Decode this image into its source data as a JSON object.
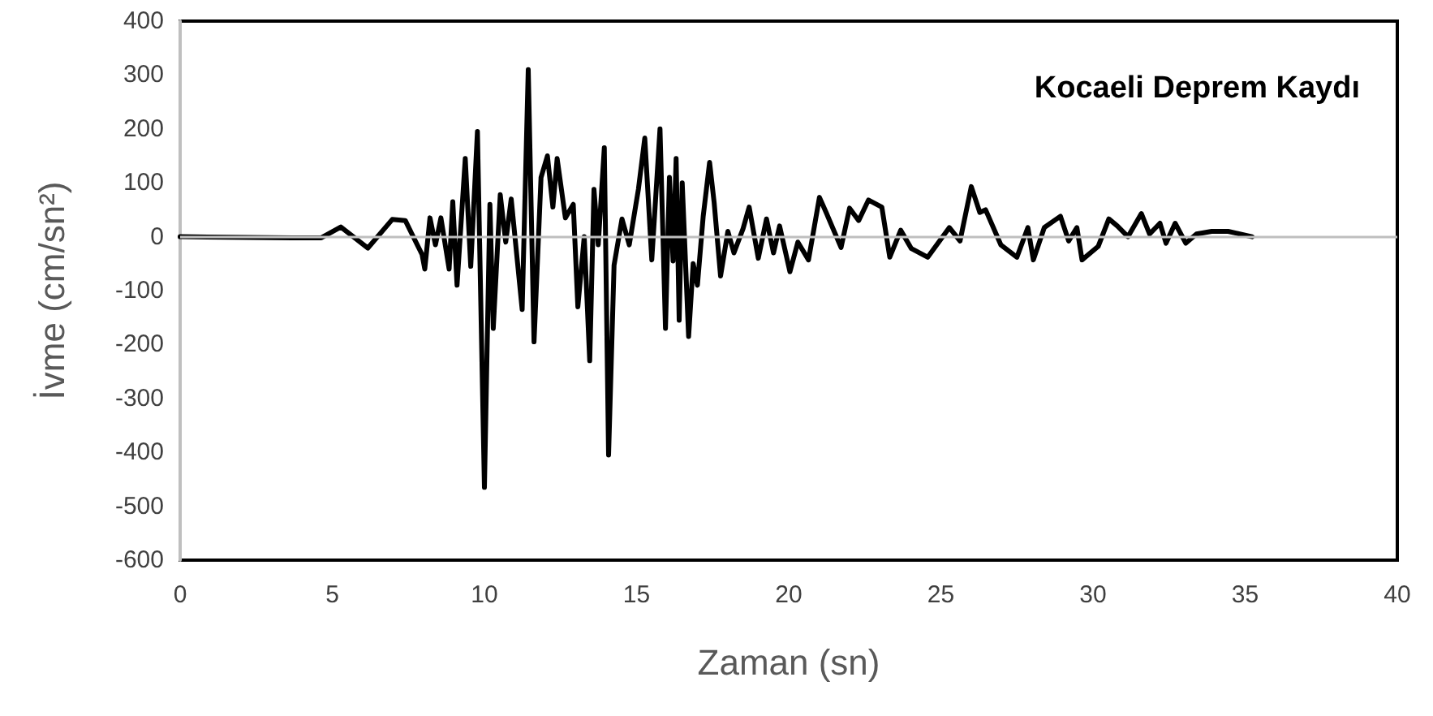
{
  "chart_data": {
    "type": "line",
    "title": "Kocaeli Deprem Kaydı",
    "xlabel": "Zaman (sn)",
    "ylabel": "İvme (cm/sn²)",
    "x": [
      0,
      3.68,
      4.64,
      5.28,
      6.17,
      6.97,
      7.4,
      7.95,
      8.04,
      8.21,
      8.39,
      8.57,
      8.84,
      8.96,
      9.1,
      9.37,
      9.55,
      9.77,
      10.0,
      10.18,
      10.29,
      10.52,
      10.7,
      10.88,
      11.24,
      11.44,
      11.63,
      11.86,
      12.07,
      12.25,
      12.39,
      12.66,
      12.92,
      13.07,
      13.28,
      13.46,
      13.6,
      13.74,
      13.94,
      14.08,
      14.26,
      14.52,
      14.76,
      15.06,
      15.27,
      15.5,
      15.77,
      15.95,
      16.08,
      16.2,
      16.3,
      16.4,
      16.5,
      16.71,
      16.86,
      17.0,
      17.19,
      17.4,
      17.55,
      17.76,
      18.0,
      18.2,
      18.5,
      18.7,
      19.0,
      19.27,
      19.5,
      19.7,
      20.04,
      20.3,
      20.65,
      21.01,
      21.23,
      21.72,
      22.0,
      22.3,
      22.62,
      23.06,
      23.32,
      23.68,
      24.03,
      24.57,
      25.28,
      25.63,
      26.0,
      26.28,
      26.47,
      26.97,
      27.5,
      27.86,
      28.04,
      28.4,
      28.93,
      29.2,
      29.47,
      29.64,
      30.17,
      30.52,
      30.8,
      31.15,
      31.59,
      31.86,
      32.2,
      32.4,
      32.7,
      33.05,
      33.4,
      33.9,
      34.44,
      35.23
    ],
    "series": [
      {
        "color": "#000000",
        "values": [
          0,
          -2,
          -2,
          18,
          -21,
          32,
          30,
          -33,
          -60,
          35,
          -15,
          35,
          -60,
          65,
          -90,
          145,
          -55,
          195,
          -465,
          60,
          -170,
          78,
          -10,
          70,
          -135,
          310,
          -195,
          110,
          150,
          55,
          145,
          35,
          60,
          -130,
          0,
          -230,
          88,
          -15,
          165,
          -405,
          -53,
          33,
          -15,
          88,
          183,
          -43,
          200,
          -170,
          110,
          -45,
          145,
          -155,
          100,
          -185,
          -50,
          -90,
          38,
          138,
          63,
          -73,
          10,
          -30,
          15,
          55,
          -40,
          33,
          -30,
          20,
          -65,
          -10,
          -43,
          73,
          45,
          -20,
          53,
          30,
          68,
          55,
          -38,
          12,
          -22,
          -38,
          17,
          -8,
          93,
          45,
          50,
          -15,
          -38,
          17,
          -43,
          17,
          38,
          -8,
          17,
          -43,
          -18,
          33,
          20,
          0,
          43,
          5,
          25,
          -12,
          25,
          -12,
          5,
          10,
          10,
          0
        ]
      }
    ],
    "xlim": [
      0,
      40
    ],
    "xticks": [
      0,
      5,
      10,
      15,
      20,
      25,
      30,
      35,
      40
    ],
    "ylim": [
      -600,
      400
    ],
    "yticks": [
      -600,
      -500,
      -400,
      -300,
      -200,
      -100,
      0,
      100,
      200,
      300,
      400
    ],
    "ref_lines": [
      {
        "axis": "y",
        "value": 0,
        "color": "#bfbfbf"
      }
    ],
    "grid": false,
    "marker": "none",
    "line_style": "solid"
  }
}
